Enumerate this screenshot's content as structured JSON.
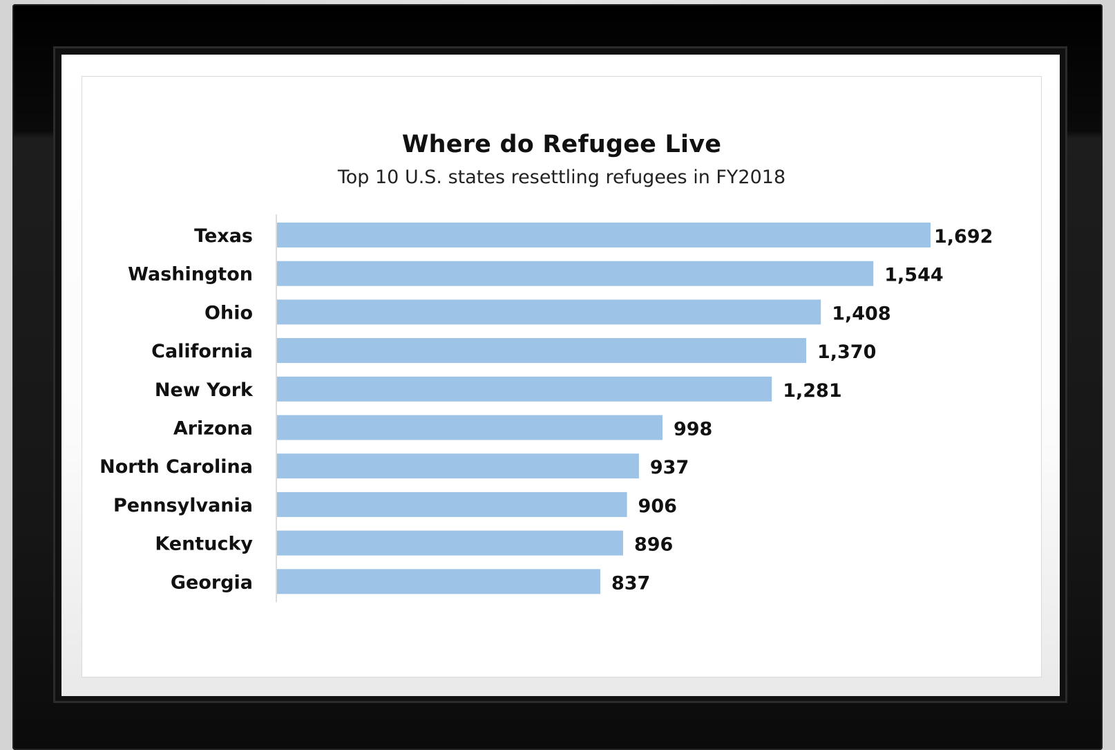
{
  "chart_data": {
    "type": "bar",
    "orientation": "horizontal",
    "title": "Where do Refugee Live",
    "subtitle": "Top 10 U.S. states resettling refugees in FY2018",
    "categories": [
      "Texas",
      "Washington",
      "Ohio",
      "California",
      "New York",
      "Arizona",
      "North Carolina",
      "Pennsylvania",
      "Kentucky",
      "Georgia"
    ],
    "values": [
      1692,
      1544,
      1408,
      1370,
      1281,
      998,
      937,
      906,
      896,
      837
    ],
    "value_labels": [
      "1,692",
      "1,544",
      "1,408",
      "1,370",
      "1,281",
      "998",
      "937",
      "906",
      "896",
      "837"
    ],
    "xlim": [
      0,
      1692
    ],
    "grid": false,
    "legend": "none",
    "bar_color": "#9dc3e6"
  }
}
